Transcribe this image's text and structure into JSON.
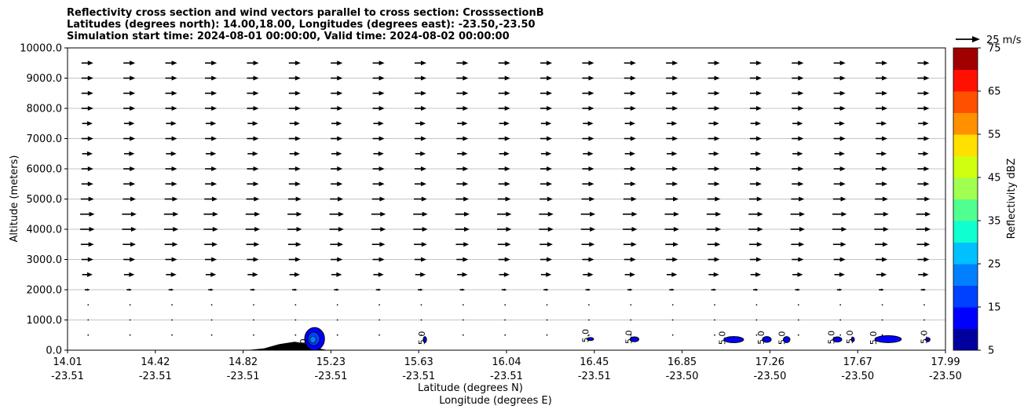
{
  "chart_data": {
    "type": "cross-section",
    "title_lines": [
      "Reflectivity cross section and wind vectors parallel to cross section: CrosssectionB",
      "Latitudes (degrees north): 14.00,18.00, Longitudes (degrees east): -23.50,-23.50",
      "Simulation start time: 2024-08-01 00:00:00, Valid time: 2024-08-02 00:00:00"
    ],
    "ylabel": "Altitude (meters)",
    "xlabel_lat": "Latitude (degrees N)",
    "xlabel_lon": "Longitude (degrees E)",
    "ylim": [
      0,
      10000
    ],
    "xlim": [
      14.01,
      17.99
    ],
    "y_ticks": [
      0,
      1000,
      2000,
      3000,
      4000,
      5000,
      6000,
      7000,
      8000,
      9000,
      10000
    ],
    "y_tick_labels": [
      "0.0",
      "1000.0",
      "2000.0",
      "3000.0",
      "4000.0",
      "5000.0",
      "6000.0",
      "7000.0",
      "8000.0",
      "9000.0",
      "10000.0"
    ],
    "x_ticks": [
      {
        "lat": "14.01",
        "lon": "-23.51"
      },
      {
        "lat": "14.42",
        "lon": "-23.51"
      },
      {
        "lat": "14.82",
        "lon": "-23.51"
      },
      {
        "lat": "15.23",
        "lon": "-23.51"
      },
      {
        "lat": "15.63",
        "lon": "-23.51"
      },
      {
        "lat": "16.04",
        "lon": "-23.51"
      },
      {
        "lat": "16.45",
        "lon": "-23.51"
      },
      {
        "lat": "16.85",
        "lon": "-23.50"
      },
      {
        "lat": "17.26",
        "lon": "-23.50"
      },
      {
        "lat": "17.67",
        "lon": "-23.50"
      },
      {
        "lat": "17.99",
        "lon": "-23.50"
      }
    ],
    "grid": "horizontal",
    "wind_reference": {
      "label": "25 m/s",
      "speed": 25
    },
    "wind_columns_lat": [
      14.1,
      14.29,
      14.48,
      14.66,
      14.85,
      15.04,
      15.23,
      15.42,
      15.61,
      15.8,
      15.99,
      16.18,
      16.37,
      16.56,
      16.75,
      16.94,
      17.13,
      17.32,
      17.51,
      17.7,
      17.89
    ],
    "wind_levels": [
      {
        "z": 9500,
        "u": 4.5
      },
      {
        "z": 9000,
        "u": 4.5
      },
      {
        "z": 8500,
        "u": 4.5
      },
      {
        "z": 8000,
        "u": 4.5
      },
      {
        "z": 7500,
        "u": 4.0
      },
      {
        "z": 7000,
        "u": 4.5
      },
      {
        "z": 6500,
        "u": 4.0
      },
      {
        "z": 6000,
        "u": 4.5
      },
      {
        "z": 5500,
        "u": 4.5
      },
      {
        "z": 5000,
        "u": 5.0
      },
      {
        "z": 4500,
        "u": 5.5
      },
      {
        "z": 4000,
        "u": 5.5
      },
      {
        "z": 3500,
        "u": 5.0
      },
      {
        "z": 3000,
        "u": 4.5
      },
      {
        "z": 2500,
        "u": 4.0
      },
      {
        "z": 2000,
        "u": 2.0
      },
      {
        "z": 1500,
        "u": 0.3
      },
      {
        "z": 1000,
        "u": 0.6
      },
      {
        "z": 500,
        "u": 0.3
      }
    ],
    "colorbar": {
      "label": "Reflectivity dBZ",
      "bounds": [
        5,
        75
      ],
      "tick_labels": [
        "5",
        "15",
        "25",
        "35",
        "45",
        "55",
        "65",
        "75"
      ],
      "tick_values": [
        5,
        15,
        25,
        35,
        45,
        55,
        65,
        75
      ],
      "colors": [
        "#00009f",
        "#0000ff",
        "#0040ff",
        "#0080ff",
        "#00c0ff",
        "#10ffd0",
        "#50ff90",
        "#a0ff50",
        "#d0ff10",
        "#ffe000",
        "#ff9000",
        "#ff5000",
        "#ff1000",
        "#a00000"
      ]
    },
    "terrain": [
      {
        "lat": 14.82,
        "z": 0
      },
      {
        "lat": 14.9,
        "z": 60
      },
      {
        "lat": 14.97,
        "z": 200
      },
      {
        "lat": 15.04,
        "z": 280
      },
      {
        "lat": 15.1,
        "z": 200
      },
      {
        "lat": 15.15,
        "z": 60
      },
      {
        "lat": 15.19,
        "z": 0
      }
    ],
    "echoes": [
      {
        "lat": 15.13,
        "z_bottom": 0,
        "z_top": 750,
        "width_deg": 0.09,
        "label": "5.0"
      },
      {
        "lat": 15.63,
        "z_bottom": 250,
        "z_top": 450,
        "width_deg": 0.015,
        "label": "5.0"
      },
      {
        "lat": 16.38,
        "z_bottom": 320,
        "z_top": 420,
        "width_deg": 0.03,
        "label": "5.0"
      },
      {
        "lat": 16.58,
        "z_bottom": 280,
        "z_top": 440,
        "width_deg": 0.04,
        "label": "5.0"
      },
      {
        "lat": 17.03,
        "z_bottom": 250,
        "z_top": 450,
        "width_deg": 0.09,
        "label": "5.0"
      },
      {
        "lat": 17.18,
        "z_bottom": 260,
        "z_top": 450,
        "width_deg": 0.04,
        "label": "5.0"
      },
      {
        "lat": 17.27,
        "z_bottom": 250,
        "z_top": 450,
        "width_deg": 0.03,
        "label": "5.0"
      },
      {
        "lat": 17.5,
        "z_bottom": 270,
        "z_top": 440,
        "width_deg": 0.04,
        "label": "5.0"
      },
      {
        "lat": 17.57,
        "z_bottom": 280,
        "z_top": 430,
        "width_deg": 0.01,
        "label": "5.0"
      },
      {
        "lat": 17.73,
        "z_bottom": 250,
        "z_top": 480,
        "width_deg": 0.12,
        "label": "5.0"
      },
      {
        "lat": 17.91,
        "z_bottom": 280,
        "z_top": 420,
        "width_deg": 0.02,
        "label": "5.0"
      }
    ]
  }
}
